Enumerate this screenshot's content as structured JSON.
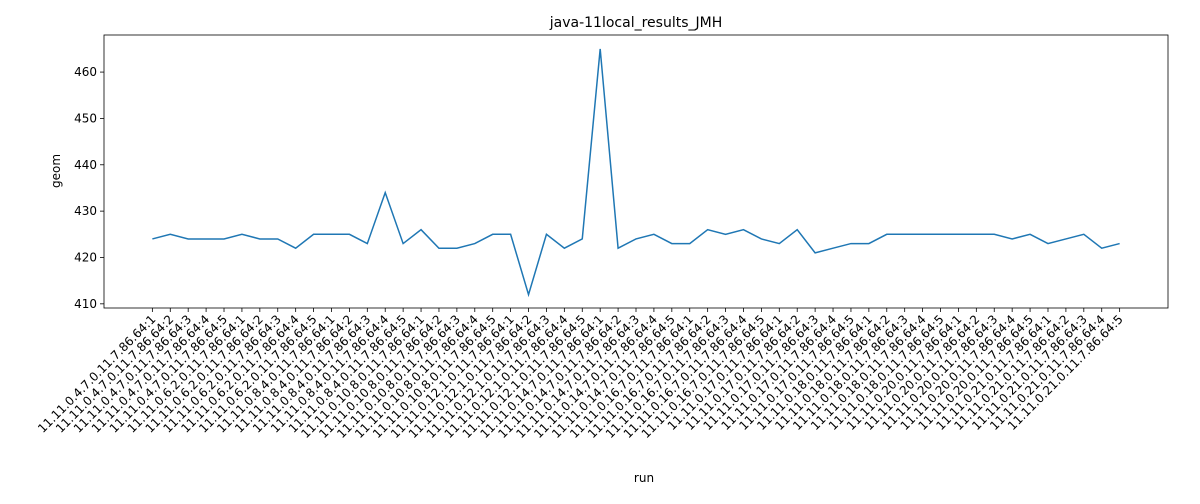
{
  "chart_data": {
    "type": "line",
    "title": "java-11local_results_JMH",
    "x_label": "run",
    "y_label": "geom",
    "categories": [
      "11.11.0.4.7.0.11.7.86.64:1",
      "11.11.0.4.7.0.11.7.86.64:2",
      "11.11.0.4.7.0.11.7.86.64:3",
      "11.11.0.4.7.0.11.7.86.64:4",
      "11.11.0.4.7.0.11.7.86.64:5",
      "11.11.0.6.2.0.11.7.86.64:1",
      "11.11.0.6.2.0.11.7.86.64:2",
      "11.11.0.6.2.0.11.7.86.64:3",
      "11.11.0.6.2.0.11.7.86.64:4",
      "11.11.0.6.2.0.11.7.86.64:5",
      "11.11.0.8.4.0.11.7.86.64:1",
      "11.11.0.8.4.0.11.7.86.64:2",
      "11.11.0.8.4.0.11.7.86.64:3",
      "11.11.0.8.4.0.11.7.86.64:4",
      "11.11.0.8.4.0.11.7.86.64:5",
      "11.11.0.10.8.0.11.7.86.64:1",
      "11.11.0.10.8.0.11.7.86.64:2",
      "11.11.0.10.8.0.11.7.86.64:3",
      "11.11.0.10.8.0.11.7.86.64:4",
      "11.11.0.10.8.0.11.7.86.64:5",
      "11.11.0.12.1.0.11.7.86.64:1",
      "11.11.0.12.1.0.11.7.86.64:2",
      "11.11.0.12.1.0.11.7.86.64:3",
      "11.11.0.12.1.0.11.7.86.64:4",
      "11.11.0.12.1.0.11.7.86.64:5",
      "11.11.0.14.7.0.11.7.86.64:1",
      "11.11.0.14.7.0.11.7.86.64:2",
      "11.11.0.14.7.0.11.7.86.64:3",
      "11.11.0.14.7.0.11.7.86.64:4",
      "11.11.0.14.7.0.11.7.86.64:5",
      "11.11.0.16.7.0.11.7.86.64:1",
      "11.11.0.16.7.0.11.7.86.64:2",
      "11.11.0.16.7.0.11.7.86.64:3",
      "11.11.0.16.7.0.11.7.86.64:4",
      "11.11.0.16.7.0.11.7.86.64:5",
      "11.11.0.17.0.11.7.86.64:1",
      "11.11.0.17.0.11.7.86.64:2",
      "11.11.0.17.0.11.7.86.64:3",
      "11.11.0.17.0.11.7.86.64:4",
      "11.11.0.17.0.11.7.86.64:5",
      "11.11.0.18.0.11.7.86.64:1",
      "11.11.0.18.0.11.7.86.64:2",
      "11.11.0.18.0.11.7.86.64:3",
      "11.11.0.18.0.11.7.86.64:4",
      "11.11.0.18.0.11.7.86.64:5",
      "11.11.0.20.0.11.7.86.64:1",
      "11.11.0.20.0.11.7.86.64:2",
      "11.11.0.20.0.11.7.86.64:3",
      "11.11.0.20.0.11.7.86.64:4",
      "11.11.0.20.0.11.7.86.64:5",
      "11.11.0.21.0.11.7.86.64:1",
      "11.11.0.21.0.11.7.86.64:2",
      "11.11.0.21.0.11.7.86.64:3",
      "11.11.0.21.0.11.7.86.64:4",
      "11.11.0.21.0.11.7.86.64:5"
    ],
    "values": [
      424,
      425,
      424,
      424,
      424,
      425,
      424,
      424,
      422,
      425,
      425,
      425,
      423,
      434,
      423,
      426,
      422,
      422,
      423,
      425,
      425,
      412,
      425,
      422,
      424,
      465,
      422,
      424,
      425,
      423,
      423,
      426,
      425,
      426,
      424,
      423,
      426,
      421,
      422,
      423,
      423,
      425,
      425,
      425,
      425,
      425,
      425,
      425,
      424,
      425,
      423,
      424,
      425,
      422,
      423
    ],
    "color": "#1f77b4",
    "ylim": [
      409.1,
      468
    ],
    "yticks": [
      410,
      420,
      430,
      440,
      450,
      460
    ]
  }
}
